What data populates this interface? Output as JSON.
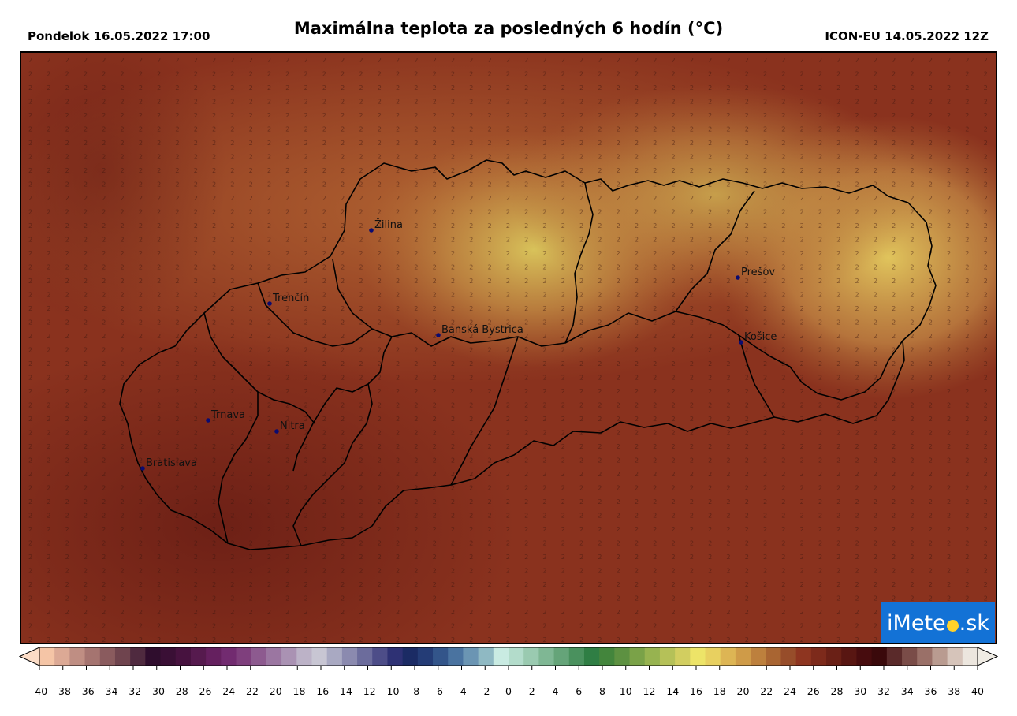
{
  "header": {
    "date_label": "Pondelok 16.05.2022 17:00",
    "title": "Maximálna teplota za posledných 6 hodín (°C)",
    "model_label": "ICON-EU 14.05.2022 12Z"
  },
  "cities": [
    {
      "name": "Žilina"
    },
    {
      "name": "Trenčín"
    },
    {
      "name": "Banská Bystrica"
    },
    {
      "name": "Prešov"
    },
    {
      "name": "Košice"
    },
    {
      "name": "Trnava"
    },
    {
      "name": "Nitra"
    },
    {
      "name": "Bratislava"
    }
  ],
  "colorbar": {
    "min": -40,
    "max": 40,
    "tick_labels": [
      "-40",
      "-38",
      "-36",
      "-34",
      "-32",
      "-30",
      "-28",
      "-26",
      "-24",
      "-22",
      "-20",
      "-18",
      "-16",
      "-14",
      "-12",
      "-10",
      "-8",
      "-6",
      "-4",
      "-2",
      "0",
      "2",
      "4",
      "6",
      "8",
      "10",
      "12",
      "14",
      "16",
      "18",
      "20",
      "22",
      "24",
      "26",
      "28",
      "30",
      "32",
      "34",
      "36",
      "38",
      "40"
    ],
    "colors": [
      "#f5c5a6",
      "#dca995",
      "#bf8e83",
      "#a57470",
      "#8a5b5e",
      "#6f444e",
      "#4f2a3f",
      "#2f0d2d",
      "#3a0f35",
      "#47123f",
      "#561a4e",
      "#65205f",
      "#722b70",
      "#7f3f7d",
      "#8d5a8f",
      "#9b76a1",
      "#aa92b3",
      "#bcb2c7",
      "#c8c6d3",
      "#a9a9c2",
      "#8b8aaf",
      "#6c6c9c",
      "#4d4d88",
      "#2e3174",
      "#1b2b64",
      "#243c76",
      "#33558a",
      "#4a73a0",
      "#6b95b3",
      "#8fb9c3",
      "#c9ebe2",
      "#b3dccb",
      "#9acab0",
      "#7fb794",
      "#65a479",
      "#4a915e",
      "#2f7e44",
      "#43853c",
      "#5d9141",
      "#7aa248",
      "#97b350",
      "#b5c158",
      "#d2ce60",
      "#ede468",
      "#e8d060",
      "#ddb554",
      "#cf9b48",
      "#bd803d",
      "#a96532",
      "#974d2a",
      "#8e3520",
      "#7d2a1b",
      "#6a2016",
      "#581612",
      "#470c0e",
      "#3a090b",
      "#5a2a2a",
      "#7a4c48",
      "#9a7068",
      "#b99b90",
      "#d6c4ba",
      "#ece6de"
    ],
    "arrow_left_color": "#fbdcc6",
    "arrow_right_color": "#f0ece4"
  },
  "logo": {
    "text_before": "iMete",
    "text_after": ".sk",
    "sun_icon": "sun-icon",
    "color": "#1372d6"
  }
}
